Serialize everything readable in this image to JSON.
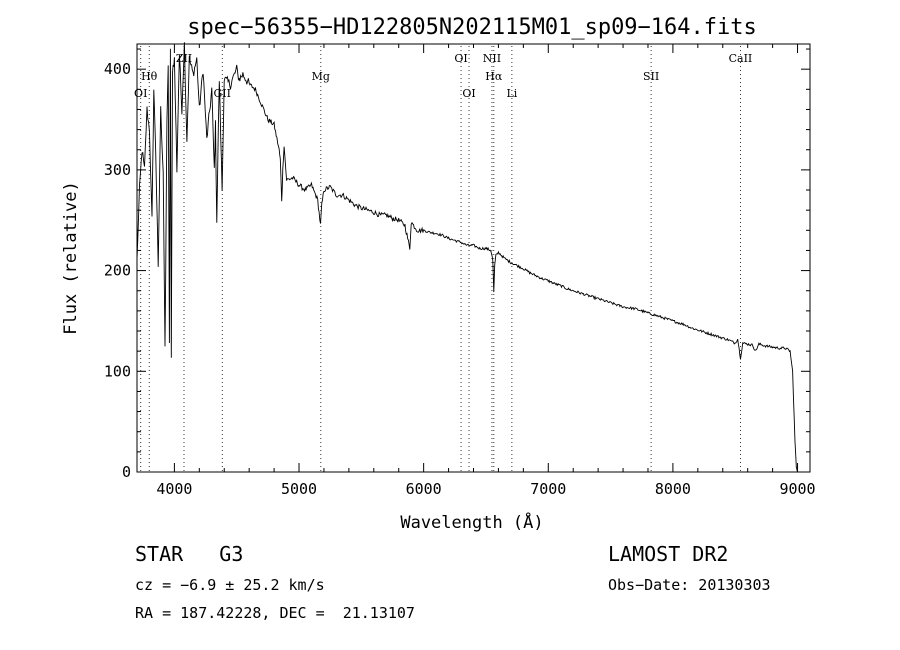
{
  "chart_data": {
    "type": "line",
    "title": "spec−56355−HD122805N202115M01_sp09−164.fits",
    "xlabel": "Wavelength (Å)",
    "ylabel": "Flux (relative)",
    "xlim": [
      3700,
      9100
    ],
    "ylim": [
      0,
      425
    ],
    "xticks": [
      4000,
      5000,
      6000,
      7000,
      8000,
      9000
    ],
    "yticks": [
      0,
      100,
      200,
      300,
      400
    ],
    "grid": false,
    "series": [
      {
        "x": [
          3700,
          3720,
          3740,
          3760,
          3780,
          3800,
          3820,
          3835,
          3850,
          3870,
          3890,
          3910,
          3925,
          3940,
          3950,
          3960,
          3968,
          3975,
          3985,
          4000,
          4020,
          4040,
          4060,
          4080,
          4100,
          4120,
          4150,
          4180,
          4200,
          4230,
          4260,
          4300,
          4320,
          4330,
          4340,
          4360,
          4383,
          4400,
          4450,
          4500,
          4520,
          4550,
          4600,
          4650,
          4700,
          4750,
          4800,
          4840,
          4850,
          4861,
          4870,
          4880,
          4900,
          4950,
          5000,
          5050,
          5100,
          5150,
          5172,
          5183,
          5200,
          5250,
          5300,
          5350,
          5400,
          5450,
          5500,
          5550,
          5600,
          5650,
          5700,
          5750,
          5800,
          5850,
          5889,
          5900,
          5950,
          6000,
          6050,
          6100,
          6150,
          6200,
          6250,
          6300,
          6350,
          6400,
          6450,
          6500,
          6540,
          6555,
          6563,
          6570,
          6580,
          6600,
          6650,
          6700,
          6750,
          6800,
          6850,
          6900,
          6950,
          7000,
          7050,
          7100,
          7150,
          7200,
          7250,
          7300,
          7350,
          7400,
          7450,
          7500,
          7550,
          7600,
          7650,
          7700,
          7750,
          7800,
          7850,
          7900,
          7950,
          8000,
          8050,
          8100,
          8150,
          8200,
          8250,
          8300,
          8350,
          8400,
          8450,
          8498,
          8520,
          8542,
          8560,
          8600,
          8640,
          8662,
          8690,
          8750,
          8800,
          8850,
          8900,
          8930,
          8940,
          8960,
          8980,
          8990,
          9000
        ],
        "values": [
          210,
          280,
          320,
          300,
          360,
          340,
          250,
          380,
          320,
          200,
          360,
          300,
          120,
          350,
          400,
          130,
          420,
          110,
          400,
          410,
          300,
          415,
          360,
          425,
          330,
          410,
          395,
          410,
          360,
          400,
          330,
          380,
          300,
          345,
          250,
          390,
          280,
          390,
          385,
          400,
          390,
          395,
          385,
          380,
          365,
          350,
          345,
          320,
          310,
          270,
          300,
          325,
          290,
          292,
          285,
          280,
          285,
          270,
          245,
          265,
          280,
          283,
          275,
          275,
          270,
          265,
          262,
          260,
          258,
          255,
          255,
          252,
          250,
          245,
          222,
          248,
          240,
          240,
          238,
          237,
          235,
          232,
          230,
          228,
          225,
          225,
          222,
          222,
          220,
          210,
          178,
          205,
          215,
          218,
          212,
          208,
          205,
          202,
          198,
          195,
          192,
          190,
          187,
          185,
          182,
          180,
          178,
          176,
          174,
          172,
          170,
          168,
          166,
          164,
          163,
          162,
          160,
          158,
          156,
          154,
          152,
          150,
          148,
          146,
          143,
          141,
          139,
          137,
          135,
          133,
          131,
          128,
          132,
          113,
          128,
          127,
          126,
          120,
          127,
          125,
          124,
          123,
          123,
          121,
          120,
          100,
          30,
          5,
          0
        ]
      }
    ],
    "lines": [
      {
        "label": "OI",
        "x": 3730,
        "row": 2
      },
      {
        "label": "Hθ",
        "x": 3798,
        "row": 1
      },
      {
        "label": "ZII",
        "x": 4077,
        "row": 0
      },
      {
        "label": "GII",
        "x": 4384,
        "row": 2
      },
      {
        "label": "Mg",
        "x": 5175,
        "row": 1
      },
      {
        "label": "OI",
        "x": 6300,
        "row": 0
      },
      {
        "label": "OI",
        "x": 6364,
        "row": 2
      },
      {
        "label": "NII",
        "x": 6548,
        "row": 0
      },
      {
        "label": "Hα",
        "x": 6563,
        "row": 1
      },
      {
        "label": "Li",
        "x": 6708,
        "row": 2
      },
      {
        "label": "SII",
        "x": 7825,
        "row": 1
      },
      {
        "label": "CaII",
        "x": 8542,
        "row": 0
      }
    ]
  },
  "info": {
    "class_line": "STAR   G3",
    "cz_line": "cz = −6.9 ± 25.2 km/s",
    "radec_line": "RA = 187.42228, DEC =  21.13107",
    "survey": "LAMOST DR2",
    "obs_date": "Obs−Date: 20130303"
  }
}
